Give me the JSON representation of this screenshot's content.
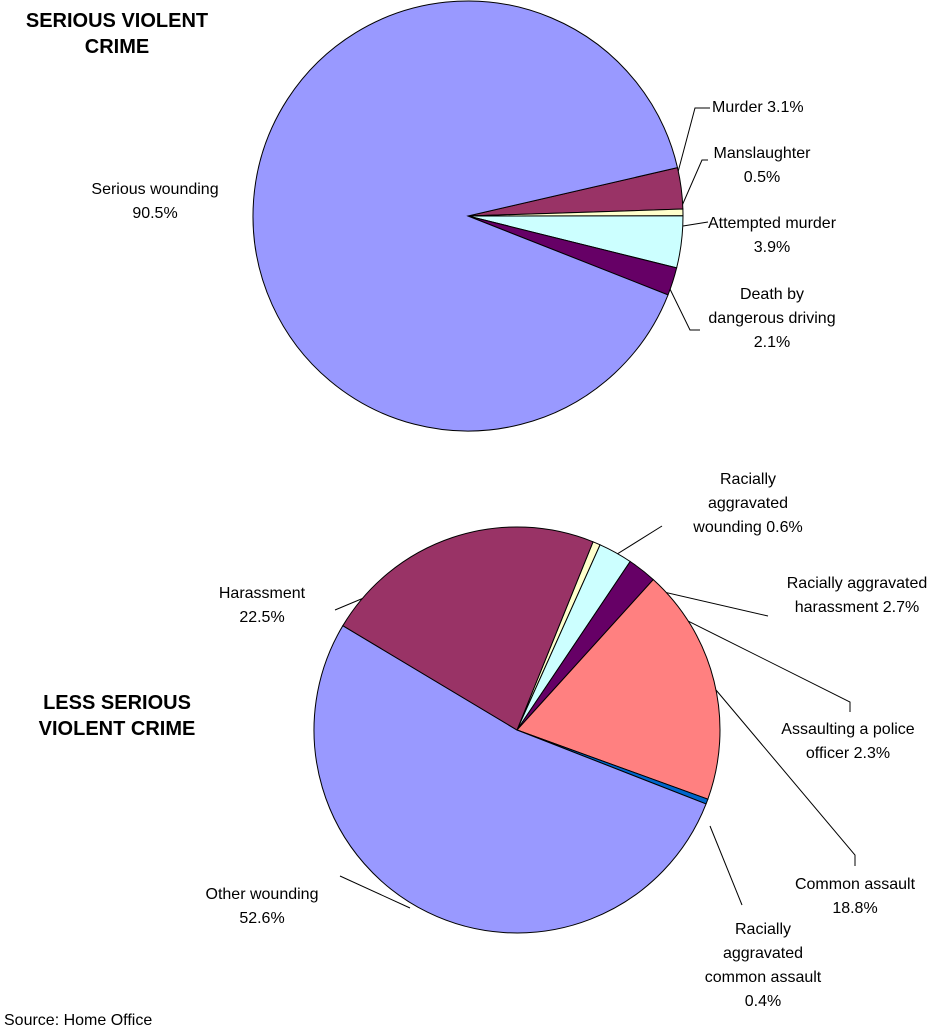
{
  "chart_data": [
    {
      "type": "pie",
      "title": "SERIOUS VIOLENT CRIME",
      "categories": [
        "Murder",
        "Manslaughter",
        "Attempted murder",
        "Death by dangerous driving",
        "Serious wounding"
      ],
      "values": [
        3.1,
        0.5,
        3.9,
        2.1,
        90.5
      ],
      "value_labels": [
        "3.1%",
        "0.5%",
        "3.9%",
        "2.1%",
        "90.5%"
      ],
      "colors": [
        "#993366",
        "#ffffcc",
        "#ccffff",
        "#660066",
        "#9999ff"
      ]
    },
    {
      "type": "pie",
      "title": "LESS SERIOUS VIOLENT CRIME",
      "categories": [
        "Racially aggravated wounding",
        "Racially aggravated harassment",
        "Assaulting a police officer",
        "Common assault",
        "Racially aggravated common assault",
        "Other wounding",
        "Harassment"
      ],
      "values": [
        0.6,
        2.7,
        2.3,
        18.8,
        0.4,
        52.6,
        22.5
      ],
      "value_labels": [
        "0.6%",
        "2.7%",
        "2.3%",
        "18.8%",
        "0.4%",
        "52.6%",
        "22.5%"
      ],
      "colors": [
        "#ffffcc",
        "#ccffff",
        "#660066",
        "#ff8080",
        "#0066cc",
        "#9999ff",
        "#993366"
      ]
    }
  ],
  "source": "Source: Home Office"
}
